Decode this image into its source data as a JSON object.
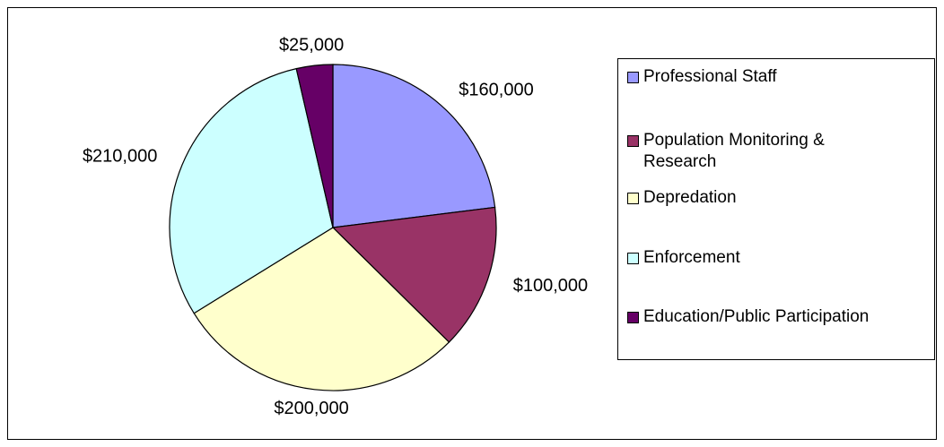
{
  "chart_data": {
    "type": "pie",
    "categories": [
      "Professional Staff",
      "Population Monitoring & Research",
      "Depredation",
      "Enforcement",
      "Education/Public Participation"
    ],
    "values": [
      160000,
      100000,
      200000,
      210000,
      25000
    ],
    "value_labels": [
      "$160,000",
      "$100,000",
      "$200,000",
      "$210,000",
      "$25,000"
    ],
    "colors": [
      "#9999ff",
      "#993366",
      "#ffffcc",
      "#ccffff",
      "#660066"
    ],
    "legend": "right"
  }
}
